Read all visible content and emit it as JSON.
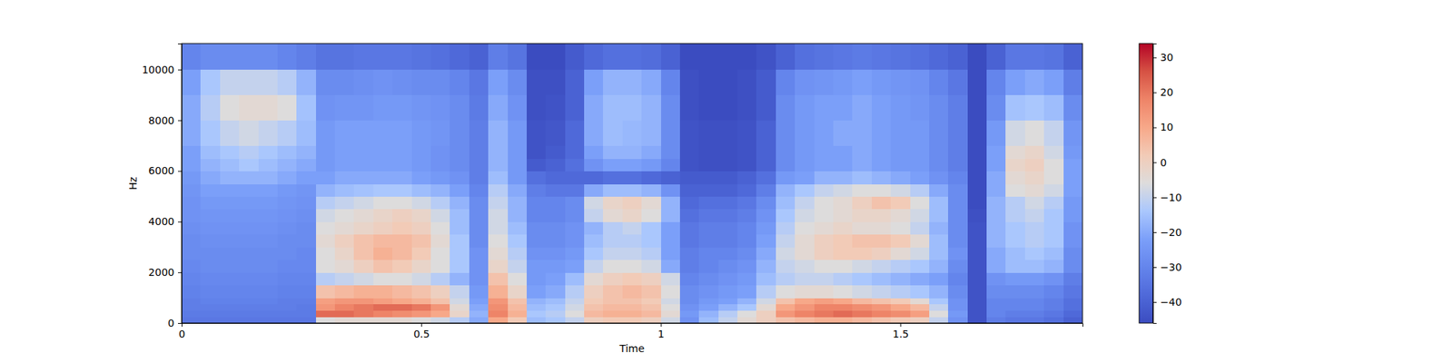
{
  "chart_data": {
    "type": "heatmap",
    "xlabel": "Time",
    "ylabel": "Hz",
    "xlim": [
      0,
      1.88
    ],
    "ylim": [
      0,
      11025
    ],
    "xticks": [
      0,
      0.5,
      1,
      1.5
    ],
    "yticks": [
      0,
      2000,
      4000,
      6000,
      8000,
      10000
    ],
    "colorbar_range": [
      -46,
      34
    ],
    "colorbar_ticks": [
      {
        "value": -40,
        "label": "−40"
      },
      {
        "value": -30,
        "label": "−30"
      },
      {
        "value": -20,
        "label": "−20"
      },
      {
        "value": -10,
        "label": "−10"
      },
      0,
      10,
      20,
      30
    ],
    "x_edges": [
      0,
      0.04,
      0.08,
      0.12,
      0.16,
      0.2,
      0.24,
      0.28,
      0.32,
      0.36,
      0.4,
      0.44,
      0.48,
      0.52,
      0.56,
      0.6,
      0.64,
      0.68,
      0.72,
      0.76,
      0.8,
      0.84,
      0.88,
      0.92,
      0.96,
      1,
      1.04,
      1.08,
      1.12,
      1.16,
      1.2,
      1.24,
      1.28,
      1.32,
      1.36,
      1.4,
      1.44,
      1.48,
      1.52,
      1.56,
      1.6,
      1.64,
      1.68,
      1.72,
      1.76,
      1.8,
      1.84,
      1.88
    ],
    "y_edges": [
      0,
      250,
      500,
      750,
      1000,
      1500,
      2000,
      2500,
      3000,
      3500,
      4000,
      4500,
      5000,
      5500,
      6000,
      6500,
      7000,
      8000,
      9000,
      10000,
      11025
    ],
    "values": [
      [
        -34,
        -34,
        -34,
        -34,
        -34,
        -34,
        -34,
        -6,
        -4,
        -4,
        -4,
        -4,
        -6,
        -8,
        -12,
        -20,
        10,
        2,
        -16,
        -14,
        -10,
        0,
        2,
        2,
        0,
        -8,
        -26,
        -16,
        -10,
        -4,
        0,
        4,
        6,
        8,
        8,
        6,
        4,
        2,
        0,
        -10,
        -26,
        -44,
        -32,
        -34,
        -34,
        -36,
        -40
      ],
      [
        -33,
        -33,
        -33,
        -33,
        -33,
        -33,
        -33,
        22,
        22,
        20,
        18,
        16,
        14,
        10,
        -2,
        -18,
        18,
        8,
        -14,
        -12,
        -6,
        6,
        8,
        8,
        6,
        -4,
        -24,
        -18,
        -12,
        -6,
        0,
        14,
        18,
        20,
        22,
        20,
        18,
        16,
        12,
        -6,
        -24,
        -44,
        -30,
        -32,
        -32,
        -34,
        -38
      ],
      [
        -32,
        -32,
        -32,
        -32,
        -32,
        -32,
        -33,
        14,
        18,
        20,
        22,
        22,
        20,
        14,
        -4,
        -20,
        16,
        6,
        -16,
        -14,
        -8,
        4,
        6,
        6,
        4,
        -6,
        -26,
        -22,
        -18,
        -14,
        -4,
        10,
        14,
        18,
        18,
        16,
        14,
        10,
        6,
        -10,
        -26,
        -44,
        -30,
        -30,
        -30,
        -32,
        -36
      ],
      [
        -32,
        -31,
        -31,
        -31,
        -31,
        -32,
        -32,
        12,
        14,
        14,
        12,
        10,
        8,
        4,
        -8,
        -22,
        14,
        4,
        -18,
        -16,
        -10,
        2,
        4,
        4,
        2,
        -8,
        -28,
        -24,
        -22,
        -18,
        -8,
        4,
        10,
        12,
        10,
        6,
        4,
        2,
        -4,
        -14,
        -26,
        -44,
        -30,
        -30,
        -30,
        -32,
        -36
      ],
      [
        -31,
        -30,
        -30,
        -30,
        -30,
        -31,
        -31,
        4,
        6,
        8,
        8,
        6,
        4,
        0,
        -10,
        -24,
        8,
        -2,
        -22,
        -20,
        -12,
        0,
        4,
        6,
        4,
        -6,
        -28,
        -26,
        -24,
        -22,
        -12,
        -6,
        -4,
        -4,
        -6,
        -8,
        -10,
        -12,
        -14,
        -18,
        -28,
        -44,
        -28,
        -28,
        -28,
        -30,
        -34
      ],
      [
        -30,
        -29,
        -29,
        -29,
        -29,
        -30,
        -30,
        -12,
        -10,
        -8,
        -6,
        -6,
        -8,
        -12,
        -18,
        -26,
        4,
        -6,
        -24,
        -22,
        -16,
        -4,
        0,
        2,
        0,
        -8,
        -30,
        -28,
        -26,
        -24,
        -16,
        -12,
        -10,
        -10,
        -12,
        -14,
        -16,
        -18,
        -20,
        -22,
        -30,
        -44,
        -26,
        -24,
        -24,
        -26,
        -32
      ],
      [
        -29,
        -28,
        -28,
        -28,
        -28,
        -29,
        -29,
        -6,
        -4,
        0,
        4,
        2,
        -2,
        -6,
        -14,
        -26,
        -2,
        -10,
        -24,
        -24,
        -22,
        -10,
        -6,
        -6,
        -8,
        -20,
        -32,
        -30,
        -28,
        -26,
        -18,
        -10,
        -8,
        -6,
        -6,
        -8,
        -10,
        -12,
        -14,
        -18,
        -28,
        -44,
        -20,
        -16,
        -16,
        -18,
        -28
      ],
      [
        -28,
        -28,
        -28,
        -28,
        -28,
        -28,
        -29,
        -6,
        -2,
        4,
        8,
        6,
        2,
        -6,
        -14,
        -26,
        -4,
        -12,
        -26,
        -26,
        -24,
        -14,
        -10,
        -10,
        -12,
        -22,
        -32,
        -30,
        -30,
        -28,
        -20,
        -8,
        -4,
        0,
        2,
        2,
        0,
        -4,
        -8,
        -16,
        -26,
        -44,
        -20,
        -16,
        -14,
        -16,
        -28
      ],
      [
        -28,
        -27,
        -27,
        -27,
        -27,
        -28,
        -28,
        -4,
        0,
        4,
        6,
        6,
        4,
        -4,
        -14,
        -28,
        -6,
        -14,
        -28,
        -28,
        -26,
        -16,
        -12,
        -12,
        -14,
        -22,
        -34,
        -32,
        -32,
        -30,
        -22,
        -10,
        -4,
        0,
        2,
        4,
        4,
        2,
        -4,
        -16,
        -28,
        -44,
        -18,
        -14,
        -12,
        -14,
        -26
      ],
      [
        -27,
        -26,
        -26,
        -26,
        -26,
        -27,
        -28,
        -6,
        -4,
        -2,
        0,
        2,
        0,
        -6,
        -16,
        -28,
        -8,
        -16,
        -28,
        -28,
        -26,
        -18,
        -12,
        -10,
        -14,
        -22,
        -34,
        -32,
        -32,
        -30,
        -24,
        -12,
        -6,
        -4,
        -2,
        -4,
        -4,
        -6,
        -10,
        -18,
        -28,
        -44,
        -18,
        -14,
        -12,
        -14,
        -26
      ],
      [
        -26,
        -25,
        -25,
        -25,
        -25,
        -26,
        -27,
        -8,
        -6,
        -4,
        -2,
        0,
        -2,
        -8,
        -16,
        -28,
        -8,
        -18,
        -30,
        -30,
        -28,
        -10,
        -4,
        -2,
        -6,
        -18,
        -36,
        -34,
        -34,
        -32,
        -26,
        -14,
        -8,
        -6,
        -4,
        -2,
        -2,
        -4,
        -8,
        -16,
        -28,
        -45,
        -18,
        -12,
        -10,
        -14,
        -24
      ],
      [
        -26,
        -24,
        -24,
        -24,
        -24,
        -25,
        -26,
        -12,
        -10,
        -8,
        -6,
        -6,
        -8,
        -12,
        -18,
        -28,
        -10,
        -18,
        -30,
        -30,
        -28,
        -8,
        -2,
        0,
        -4,
        -18,
        -38,
        -36,
        -36,
        -34,
        -28,
        -16,
        -10,
        -6,
        -4,
        0,
        4,
        2,
        -6,
        -16,
        -28,
        -46,
        -18,
        -12,
        -8,
        -12,
        -24
      ],
      [
        -25,
        -22,
        -22,
        -22,
        -22,
        -24,
        -25,
        -18,
        -16,
        -15,
        -14,
        -14,
        -16,
        -18,
        -22,
        -30,
        -12,
        -20,
        -32,
        -34,
        -34,
        -20,
        -16,
        -16,
        -18,
        -26,
        -40,
        -40,
        -40,
        -38,
        -32,
        -18,
        -14,
        -10,
        -8,
        -6,
        -6,
        -8,
        -12,
        -20,
        -28,
        -46,
        -20,
        -6,
        -4,
        -8,
        -22
      ],
      [
        -24,
        -20,
        -18,
        -18,
        -18,
        -20,
        -22,
        -22,
        -20,
        -20,
        -20,
        -20,
        -22,
        -24,
        -26,
        -32,
        -16,
        -24,
        -36,
        -38,
        -38,
        -38,
        -36,
        -36,
        -38,
        -40,
        -42,
        -42,
        -42,
        -40,
        -36,
        -24,
        -22,
        -18,
        -18,
        -16,
        -18,
        -20,
        -22,
        -26,
        -30,
        -46,
        -20,
        -4,
        -2,
        -6,
        -22
      ],
      [
        -22,
        -18,
        -16,
        -14,
        -16,
        -18,
        -20,
        -24,
        -22,
        -22,
        -22,
        -22,
        -24,
        -26,
        -28,
        -32,
        -18,
        -24,
        -42,
        -40,
        -36,
        -26,
        -22,
        -22,
        -24,
        -30,
        -44,
        -45,
        -45,
        -44,
        -40,
        -28,
        -24,
        -22,
        -22,
        -20,
        -22,
        -24,
        -24,
        -28,
        -32,
        -46,
        -22,
        -2,
        0,
        -6,
        -22
      ],
      [
        -22,
        -16,
        -14,
        -12,
        -14,
        -16,
        -18,
        -24,
        -22,
        -22,
        -22,
        -22,
        -24,
        -26,
        -28,
        -32,
        -18,
        -24,
        -44,
        -42,
        -38,
        -22,
        -18,
        -18,
        -20,
        -28,
        -44,
        -45,
        -45,
        -44,
        -40,
        -28,
        -24,
        -22,
        -22,
        -20,
        -22,
        -24,
        -24,
        -28,
        -32,
        -46,
        -22,
        -4,
        -2,
        -8,
        -24
      ],
      [
        -20,
        -14,
        -10,
        -8,
        -10,
        -12,
        -16,
        -24,
        -22,
        -22,
        -22,
        -22,
        -24,
        -25,
        -28,
        -32,
        -18,
        -24,
        -44,
        -43,
        -38,
        -20,
        -16,
        -17,
        -18,
        -28,
        -44,
        -45,
        -45,
        -44,
        -40,
        -28,
        -24,
        -22,
        -20,
        -20,
        -22,
        -24,
        -24,
        -28,
        -32,
        -46,
        -24,
        -8,
        -6,
        -10,
        -25
      ],
      [
        -20,
        -12,
        -6,
        -4,
        -4,
        -6,
        -15,
        -26,
        -25,
        -25,
        -24,
        -24,
        -25,
        -26,
        -28,
        -33,
        -20,
        -26,
        -45,
        -44,
        -40,
        -20,
        -16,
        -16,
        -18,
        -28,
        -45,
        -46,
        -46,
        -45,
        -42,
        -28,
        -24,
        -22,
        -22,
        -20,
        -22,
        -24,
        -25,
        -28,
        -32,
        -46,
        -28,
        -15,
        -14,
        -16,
        -28
      ],
      [
        -22,
        -14,
        -10,
        -10,
        -10,
        -12,
        -18,
        -28,
        -28,
        -27,
        -26,
        -27,
        -28,
        -28,
        -30,
        -34,
        -22,
        -28,
        -45,
        -45,
        -40,
        -22,
        -18,
        -18,
        -20,
        -30,
        -45,
        -46,
        -46,
        -45,
        -42,
        -30,
        -26,
        -25,
        -24,
        -22,
        -24,
        -25,
        -26,
        -30,
        -34,
        -46,
        -30,
        -22,
        -20,
        -22,
        -32
      ],
      [
        -30,
        -28,
        -28,
        -28,
        -28,
        -30,
        -32,
        -35,
        -35,
        -34,
        -34,
        -34,
        -35,
        -36,
        -38,
        -40,
        -32,
        -35,
        -46,
        -46,
        -42,
        -38,
        -36,
        -36,
        -37,
        -40,
        -46,
        -46,
        -46,
        -46,
        -44,
        -40,
        -36,
        -35,
        -34,
        -33,
        -34,
        -35,
        -36,
        -38,
        -40,
        -46,
        -40,
        -34,
        -34,
        -35,
        -40
      ]
    ]
  }
}
